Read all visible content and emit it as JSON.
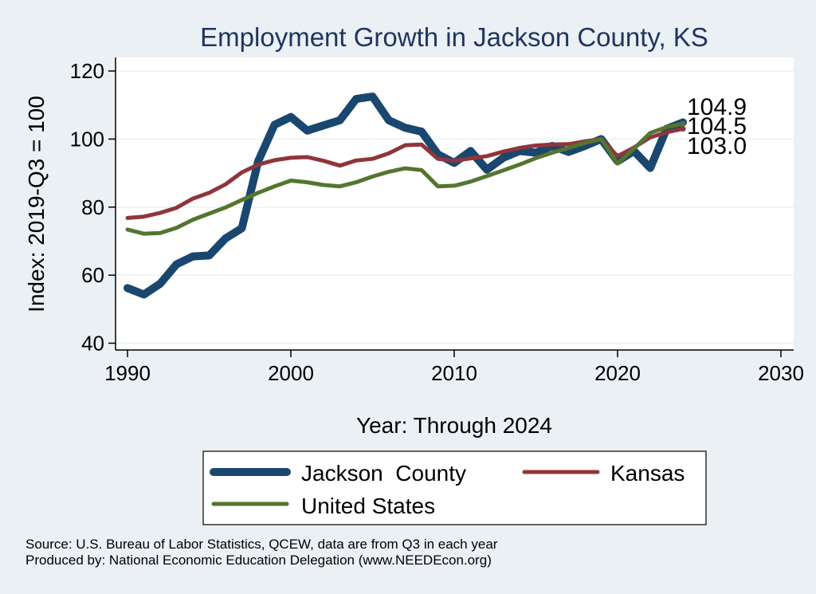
{
  "chart_data": {
    "type": "line",
    "title": "Employment Growth in Jackson County, KS",
    "xlabel": "Year: Through 2024",
    "ylabel": "Index: 2019-Q3 = 100",
    "xlim": [
      1990,
      2030
    ],
    "ylim": [
      38,
      124
    ],
    "x_ticks": [
      1990,
      2000,
      2010,
      2020,
      2030
    ],
    "y_ticks": [
      40,
      60,
      80,
      100,
      120
    ],
    "grid": true,
    "legend_position": "bottom",
    "x": [
      1990,
      1991,
      1992,
      1993,
      1994,
      1995,
      1996,
      1997,
      1998,
      1999,
      2000,
      2001,
      2002,
      2003,
      2004,
      2005,
      2006,
      2007,
      2008,
      2009,
      2010,
      2011,
      2012,
      2013,
      2014,
      2015,
      2016,
      2017,
      2018,
      2019,
      2020,
      2021,
      2022,
      2023,
      2024
    ],
    "series": [
      {
        "name": "Jackson  County",
        "color": "#1a476f",
        "values": [
          56.2,
          54.3,
          57.5,
          63.2,
          65.5,
          65.8,
          70.8,
          73.8,
          93.5,
          104.2,
          106.5,
          102.5,
          104.0,
          105.5,
          111.8,
          112.5,
          105.5,
          103.3,
          102.2,
          95.5,
          93.0,
          96.5,
          91.0,
          94.5,
          96.5,
          96.0,
          98.0,
          96.2,
          98.0,
          100.0,
          93.5,
          96.5,
          91.5,
          103.0,
          104.9
        ],
        "end_label": "104.9"
      },
      {
        "name": "Kansas",
        "color": "#90353b",
        "values": [
          76.8,
          77.2,
          78.3,
          79.8,
          82.5,
          84.2,
          86.7,
          90.2,
          92.5,
          93.8,
          94.5,
          94.7,
          93.6,
          92.2,
          93.7,
          94.2,
          95.8,
          98.2,
          98.4,
          94.2,
          93.6,
          94.3,
          95.0,
          96.3,
          97.4,
          98.1,
          98.4,
          98.5,
          99.3,
          100.0,
          95.0,
          97.5,
          100.5,
          102.0,
          103.0
        ],
        "end_label": "103.0"
      },
      {
        "name": "United States",
        "color": "#55752f",
        "values": [
          73.4,
          72.2,
          72.4,
          73.9,
          76.3,
          78.1,
          79.9,
          82.1,
          84.2,
          86.1,
          87.8,
          87.3,
          86.5,
          86.1,
          87.3,
          89.0,
          90.4,
          91.4,
          90.9,
          86.1,
          86.3,
          87.5,
          89.1,
          90.8,
          92.5,
          94.4,
          96.0,
          97.4,
          98.9,
          100.0,
          92.8,
          97.2,
          101.8,
          103.5,
          104.5
        ],
        "end_label": "104.5"
      }
    ]
  },
  "legend": {
    "items": [
      {
        "label": "Jackson  County",
        "color": "#1a476f",
        "width": 10
      },
      {
        "label": "Kansas",
        "color": "#90353b",
        "width": 5
      },
      {
        "label": "United States",
        "color": "#55752f",
        "width": 5
      }
    ]
  },
  "footer": {
    "source": "Source: U.S. Bureau of Labor Statistics, QCEW, data are from Q3 in each year",
    "produced": "Produced by: National Economic Education Delegation (www.NEEDEcon.org)"
  }
}
